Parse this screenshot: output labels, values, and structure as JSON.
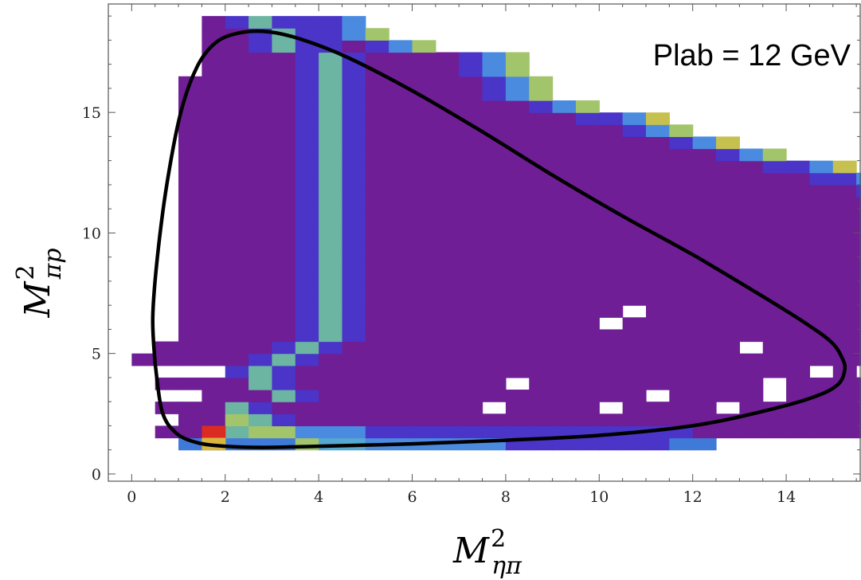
{
  "chart_data": {
    "type": "heatmap",
    "annotation": "Plab = 12 GeV",
    "xlabel": {
      "base": "M",
      "sup": "2",
      "sub": "ηπ"
    },
    "ylabel": {
      "base": "M",
      "sup": "2",
      "sub": "πp"
    },
    "xlim": [
      -0.5,
      15.6
    ],
    "ylim": [
      -0.3,
      19.5
    ],
    "xticks": [
      0,
      2,
      4,
      6,
      8,
      10,
      12,
      14
    ],
    "yticks": [
      0,
      5,
      10,
      15
    ],
    "bin_width": 0.5,
    "bin_height": 0.5,
    "rows_y_start": 1.0,
    "rows": [
      {
        "x0": 1.0,
        "codes": "AAAAAF11CCCCCCBBBBBBBAA"
      },
      {
        "x0": 0.5,
        "codes": "PPP3FFCCCBBBBBBBBBBBBBBPPPPPPPPPPPPPPPP"
      },
      {
        "x0": 1.0,
        "codes": "PPF3BPPPPPPPPPPPPPPPPPPPPPPPPPPPPPPPPPPPP"
      },
      {
        "x0": 0.5,
        "codes": "PPP3BPPPPPPPPP.PPPP.PPPP.PPPPPPPP.PPP.PPPPPPPPP"
      },
      {
        "x0": 0.0,
        "codes": "...PPP3BPPPPPPPPPPPPPP.PPPP.PPPP.P.PPPPPPPP.PPPPP"
      },
      {
        "x0": 0.5,
        "codes": "PPPP3BPPPPPPPPP.PPPPPPPPPP.PPPPPP.PPPPPPPPP"
      },
      {
        "x0": 0.5,
        "codes": "...B3BPPPPPPPPPPPPPPPPPPPPPP.P.PPPPP.PPPPP..PPPPP"
      },
      {
        "x0": 0.0,
        "codes": "PPPPPB3BPPPPPPPPPPPPPPPPPPPPPPPPPPPPPPPPPPPPPPPPP"
      },
      {
        "x0": 0.5,
        "codes": "PPPPPB3BPPPPPPPPPPPPPPPPP.PPPPPPPPPPPPPPPPPPPPPPP"
      },
      {
        "x0": 1.0,
        "codes": "PPPPPB3BPPPPPPPPPPPPPPPPPPPPPPPPPPPPPPPPPPPPPPPPPBB"
      },
      {
        "x0": 1.0,
        "codes": "PPPPPB3BPPPPPPPPPP.PPPPPPPPPPPPPPPPPPPPPPPPPPBBC"
      },
      {
        "x0": 1.0,
        "codes": "PPPPPB3BPPPPPPPPPPP.PPPPPPPPPPPPPPPPPPPPPPPPPBBCF"
      },
      {
        "x0": 1.0,
        "codes": "PPPPPB3BPPPPPPPPPPPPPPPPPPPPPPPPPPPPPPPPPPPBBC3"
      },
      {
        "x0": 1.0,
        "codes": "PPPPPB3BPPPPPPPPPPPPPPPPPPPPPPPPPPPPPPPPPBBC5"
      },
      {
        "x0": 1.0,
        "codes": "PPPPPB3BPPPPPPPPPPPPPPPPPPPPPPPPPPPPPPPBBCFO"
      },
      {
        "x0": 1.0,
        "codes": "PPPPPB3BPPPPPPPPPPPPPPPPPPPPPPPPPPPPPBBC5"
      },
      {
        "x0": 1.0,
        "codes": "PPPPPB3BPPPPPPPPPPPPPPPPPPPPPPPPPPPPBBCF"
      },
      {
        "x0": 1.0,
        "codes": "PPPPPB3BPPPPPPPPPPPPPPPPPPPPPPPPPPPPB5"
      },
      {
        "x0": 1.0,
        "codes": "PPPPPB3BPPPPPPPPPPPPPPPPPPPPPPPPPPBBCO"
      },
      {
        "x0": 1.0,
        "codes": "PPPPPB3BPPPPPPPPPPPPPPPPPPPPPPPPBBCF"
      },
      {
        "x0": 1.0,
        "codes": "PPPPPB3BPPPPPPPPPPPPPPPPPPPPPPBBCF"
      },
      {
        "x0": 1.0,
        "codes": "PPPPPB3BPPPPPPPPPPPPPPPPPPPPPBC5"
      },
      {
        "x0": 1.0,
        "codes": "PPPPPB3BPPPPPPPPPPPPPPPPPPPBBC5"
      },
      {
        "x0": 1.0,
        "codes": "PPPPPB3BPPPPPPPPPPPPPPPPPBBC5"
      },
      {
        "x0": 1.0,
        "codes": "PPPPPB3BPPPPPPPPPPPPPPPBCF"
      },
      {
        "x0": 1.0,
        "codes": "PPPPPB3BPPPPPPPPPPPPPBC5"
      },
      {
        "x0": 1.0,
        "codes": "PPPPPB3BPPPPPPPPPPPBCF"
      },
      {
        "x0": 1.0,
        "codes": "PPPPPB3BPPPPPPPPPBBC5"
      },
      {
        "x0": 1.0,
        "codes": "PPPPPB3BPPPPPPPBCF"
      },
      {
        "x0": 1.0,
        "codes": "PPPPPB3BPPPPPBCF"
      },
      {
        "x0": 1.0,
        "codes": "PPPPPB3BPPPPPBCF"
      },
      {
        "x0": 1.5,
        "codes": "PPPPB3BPPPPBCF"
      },
      {
        "x0": 1.5,
        "codes": "PPPPB3BPPPPBCF"
      },
      {
        "x0": 1.5,
        "codes": "PPB3BBPBCF"
      },
      {
        "x0": 1.5,
        "codes": "PPB3BBCF"
      },
      {
        "x0": 1.5,
        "codes": "PB3BBBC"
      }
    ],
    "special_cells": [
      {
        "x": 1.5,
        "y": 1.5,
        "code": "R"
      },
      {
        "x": 1.5,
        "y": 1.0,
        "code": "Y"
      }
    ],
    "color_codes": {
      "P": "#6f1e96",
      "B": "#4a35c8",
      "A": "#3f7ad8",
      "C": "#4a8be0",
      "1": "#55a8d0",
      "3": "#6db5a3",
      "F": "#a2c46a",
      "5": "#c6c04e",
      "O": "#e8963c",
      "R": "#db2b23",
      "Y": "#d9b73e"
    },
    "boundary": {
      "color": "#000000",
      "points": [
        [
          0.5,
          4.6
        ],
        [
          0.45,
          6.5
        ],
        [
          0.55,
          9.0
        ],
        [
          0.75,
          12.0
        ],
        [
          1.05,
          15.0
        ],
        [
          1.4,
          16.9
        ],
        [
          1.8,
          17.9
        ],
        [
          2.3,
          18.3
        ],
        [
          2.9,
          18.35
        ],
        [
          3.6,
          18.05
        ],
        [
          4.6,
          17.3
        ],
        [
          6.0,
          15.9
        ],
        [
          7.5,
          14.2
        ],
        [
          9.0,
          12.4
        ],
        [
          10.5,
          10.7
        ],
        [
          12.0,
          9.1
        ],
        [
          13.3,
          7.6
        ],
        [
          14.3,
          6.4
        ],
        [
          14.95,
          5.5
        ],
        [
          15.2,
          4.8
        ],
        [
          15.25,
          4.3
        ],
        [
          15.1,
          3.7
        ],
        [
          14.6,
          3.2
        ],
        [
          13.5,
          2.6
        ],
        [
          12.0,
          2.0
        ],
        [
          10.0,
          1.6
        ],
        [
          8.0,
          1.4
        ],
        [
          6.0,
          1.25
        ],
        [
          4.0,
          1.15
        ],
        [
          2.8,
          1.1
        ],
        [
          2.0,
          1.15
        ],
        [
          1.4,
          1.3
        ],
        [
          0.95,
          1.7
        ],
        [
          0.65,
          2.6
        ],
        [
          0.5,
          4.6
        ]
      ]
    }
  }
}
